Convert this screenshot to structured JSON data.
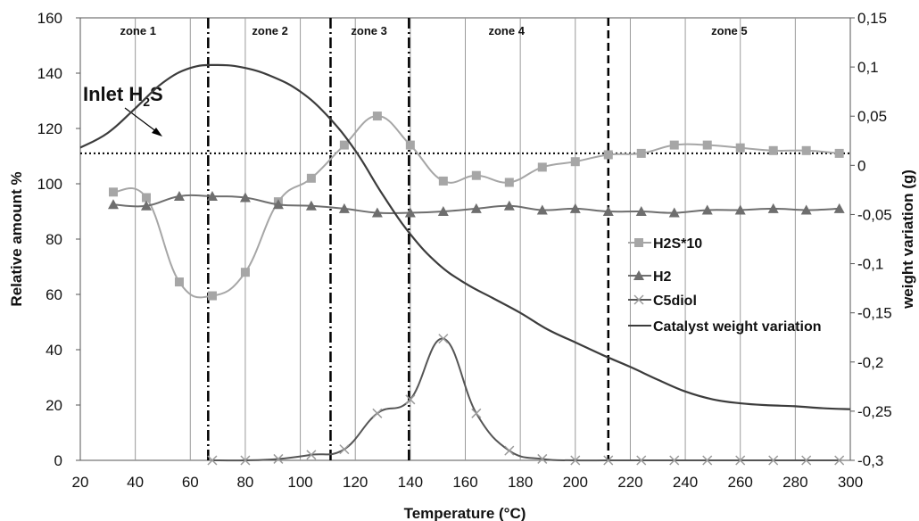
{
  "chart_data": {
    "type": "line",
    "xlabel": "Temperature (°C)",
    "ylabel": "Relative amount %",
    "y2label": "weight variation (g)",
    "xlim": [
      20,
      300
    ],
    "ylim": [
      0,
      160
    ],
    "y2lim": [
      -0.3,
      0.15
    ],
    "xticks": [
      "20",
      "40",
      "60",
      "80",
      "100",
      "120",
      "140",
      "160",
      "180",
      "200",
      "220",
      "240",
      "260",
      "280",
      "300"
    ],
    "yticks": [
      "0",
      "20",
      "40",
      "60",
      "80",
      "100",
      "120",
      "140",
      "160"
    ],
    "y2ticks": [
      "-0,3",
      "-0,25",
      "-0,2",
      "-0,15",
      "-0,1",
      "-0,05",
      "0",
      "0,05",
      "0,1",
      "0,15"
    ],
    "grid": "vertical",
    "legend_position": "right",
    "zones": [
      {
        "label": "zone 1",
        "x": 41
      },
      {
        "label": "zone 2",
        "x": 89
      },
      {
        "label": "zone 3",
        "x": 125
      },
      {
        "label": "zone 4",
        "x": 175
      },
      {
        "label": "zone 5",
        "x": 256
      }
    ],
    "zone_boundaries": [
      66.5,
      111,
      139.5,
      212
    ],
    "inlet": {
      "label_main": "Inlet H",
      "label_sub": "2",
      "label_end": "S",
      "value": 111
    },
    "series": [
      {
        "name": "H2S*10",
        "marker": "square",
        "color": "#a6a6a6",
        "x": [
          32,
          44,
          56,
          68,
          80,
          92,
          104,
          116,
          128,
          140,
          152,
          164,
          176,
          188,
          200,
          212,
          224,
          236,
          248,
          260,
          272,
          284,
          296
        ],
        "y": [
          97,
          95,
          64.5,
          59.5,
          68,
          93.5,
          102,
          114,
          124.5,
          114,
          101,
          103,
          100.5,
          106,
          108,
          110.5,
          111,
          114,
          114,
          113,
          112,
          112,
          111
        ]
      },
      {
        "name": "H2",
        "marker": "triangle",
        "color": "#6e6e6e",
        "x": [
          32,
          44,
          56,
          68,
          80,
          92,
          104,
          116,
          128,
          140,
          152,
          164,
          176,
          188,
          200,
          212,
          224,
          236,
          248,
          260,
          272,
          284,
          296
        ],
        "y": [
          92.5,
          92,
          95.5,
          95.5,
          95,
          92.5,
          92,
          91,
          89.5,
          89.5,
          90,
          91,
          92,
          90.5,
          91,
          90,
          90,
          89.5,
          90.5,
          90.5,
          91,
          90.5,
          91
        ]
      },
      {
        "name": "C5diol",
        "marker": "cross",
        "color": "#555555",
        "x": [
          68,
          80,
          92,
          104,
          116,
          128,
          140,
          152,
          164,
          176,
          188,
          200,
          212,
          224,
          236,
          248,
          260,
          272,
          284,
          296
        ],
        "y": [
          0,
          0,
          0.5,
          2,
          4,
          17,
          22,
          44,
          17,
          3.5,
          0.5,
          0,
          0,
          0,
          0,
          0,
          0,
          0,
          0,
          0
        ]
      },
      {
        "name": "Catalyst weight variation",
        "marker": "none",
        "axis": "right",
        "color": "#3c3c3c",
        "x": [
          20,
          30,
          40,
          50,
          60,
          70,
          80,
          90,
          100,
          110,
          120,
          130,
          140,
          150,
          160,
          170,
          180,
          190,
          200,
          210,
          220,
          230,
          240,
          250,
          260,
          270,
          280,
          290,
          300
        ],
        "y": [
          0.018,
          0.033,
          0.058,
          0.084,
          0.099,
          0.102,
          0.099,
          0.09,
          0.075,
          0.05,
          0.015,
          -0.03,
          -0.07,
          -0.1,
          -0.12,
          -0.135,
          -0.15,
          -0.167,
          -0.18,
          -0.193,
          -0.205,
          -0.218,
          -0.23,
          -0.238,
          -0.242,
          -0.244,
          -0.245,
          -0.247,
          -0.248
        ]
      }
    ]
  }
}
